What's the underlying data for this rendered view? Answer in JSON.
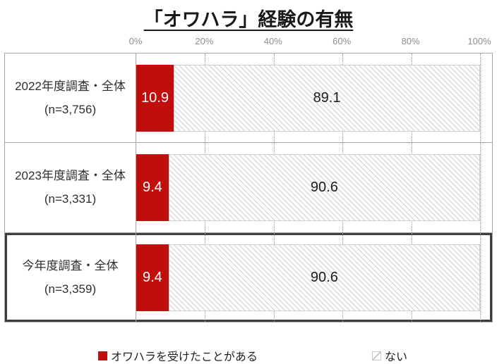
{
  "title": "「オワハラ」経験の有無",
  "axis": {
    "ticks": [
      "0%",
      "20%",
      "40%",
      "60%",
      "80%",
      "100%"
    ]
  },
  "rows": [
    {
      "label": "2022年度調査・全体",
      "n": "(n=3,756)",
      "yes": 10.9,
      "no": 89.1
    },
    {
      "label": "2023年度調査・全体",
      "n": "(n=3,331)",
      "yes": 9.4,
      "no": 90.6
    },
    {
      "label": "今年度調査・全体",
      "n": "(n=3,359)",
      "yes": 9.4,
      "no": 90.6
    }
  ],
  "legend": [
    {
      "label": "オワハラを受けたことがある",
      "swatch": "red-filled"
    },
    {
      "label": "ない",
      "swatch": "hatched-white"
    }
  ],
  "colors": {
    "accent_red": "#c20d0d",
    "hatch_line": "#dadada",
    "grid_line": "#9a9a9a",
    "table_border": "#a6a6a6",
    "highlight_border": "#3f3f3f",
    "axis_text": "#8c8c8c"
  },
  "chart_data": {
    "type": "bar",
    "orientation": "horizontal-stacked",
    "title": "「オワハラ」経験の有無",
    "categories": [
      "2022年度調査・全体 (n=3,756)",
      "2023年度調査・全体 (n=3,331)",
      "今年度調査・全体 (n=3,359)"
    ],
    "series": [
      {
        "name": "オワハラを受けたことがある",
        "values": [
          10.9,
          9.4,
          9.4
        ],
        "color": "#c20d0d",
        "style": "solid"
      },
      {
        "name": "ない",
        "values": [
          89.1,
          90.6,
          90.6
        ],
        "color": "#ffffff",
        "style": "hatched-diagonal"
      }
    ],
    "xlim": [
      0,
      100
    ],
    "xticks": [
      "0%",
      "20%",
      "40%",
      "60%",
      "80%",
      "100%"
    ],
    "grid": "vertical-dotted",
    "legend_position": "bottom",
    "value_labels": "inside-segments",
    "highlighted_category_index": 2
  }
}
